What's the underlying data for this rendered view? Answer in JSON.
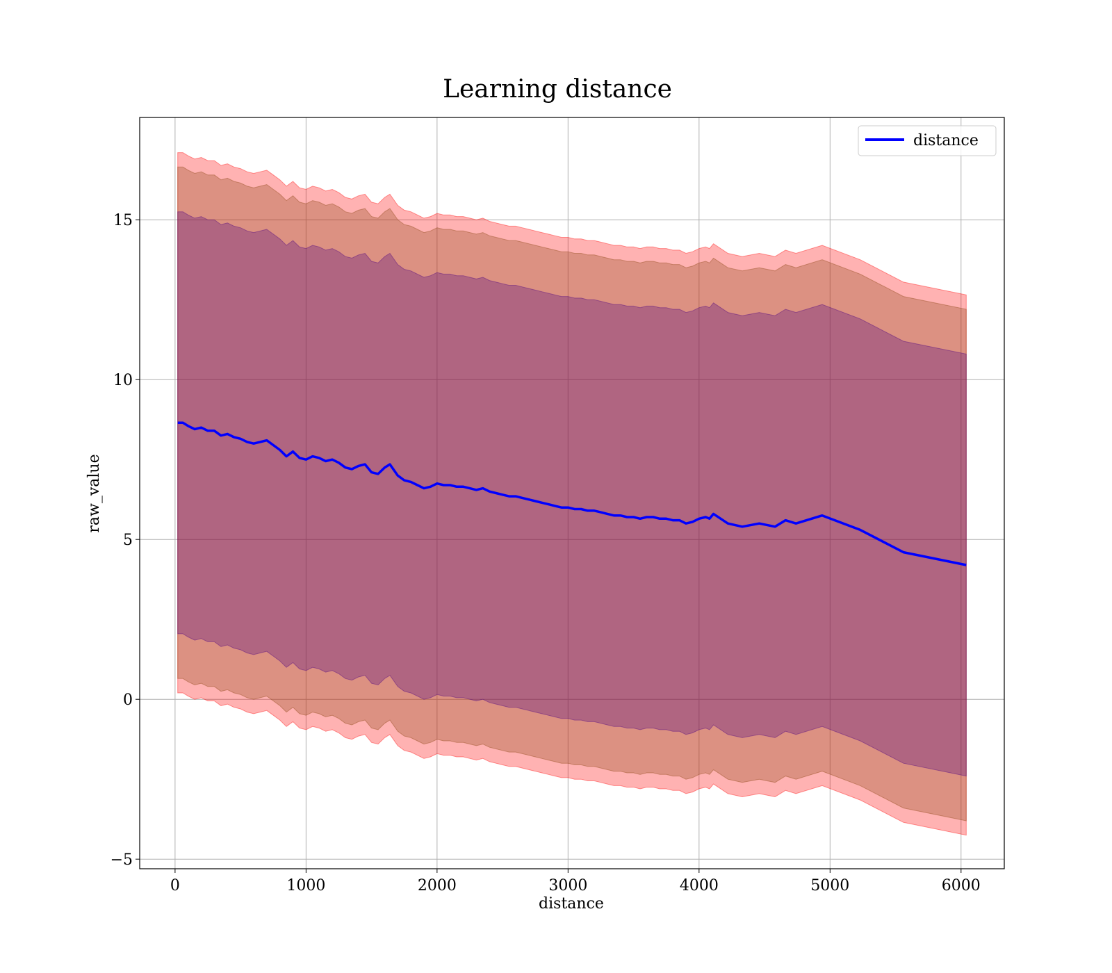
{
  "chart_data": {
    "type": "line",
    "title": "Learning distance",
    "xlabel": "distance",
    "ylabel": "raw_value",
    "xlim": [
      -270,
      6330
    ],
    "ylim": [
      -5.3,
      18.2
    ],
    "xticks": [
      0,
      1000,
      2000,
      3000,
      4000,
      5000,
      6000
    ],
    "xtick_labels": [
      "0",
      "1000",
      "2000",
      "3000",
      "4000",
      "5000",
      "6000"
    ],
    "yticks": [
      -5,
      0,
      5,
      10,
      15
    ],
    "ytick_labels": [
      "−5",
      "0",
      "5",
      "10",
      "15"
    ],
    "grid": true,
    "legend": {
      "position": "top-right",
      "entries": [
        "distance"
      ]
    },
    "colors": {
      "line": "#0000ff",
      "band_outer": "#ff0000",
      "band_mid": "#8b4513",
      "band_inner": "#4b0082"
    },
    "x": [
      20,
      60,
      100,
      150,
      200,
      250,
      300,
      350,
      400,
      450,
      500,
      550,
      600,
      650,
      700,
      750,
      800,
      850,
      900,
      950,
      1000,
      1050,
      1100,
      1150,
      1200,
      1250,
      1300,
      1350,
      1400,
      1450,
      1500,
      1550,
      1600,
      1640,
      1700,
      1750,
      1800,
      1850,
      1900,
      1950,
      2000,
      2050,
      2100,
      2150,
      2200,
      2250,
      2300,
      2350,
      2400,
      2450,
      2500,
      2550,
      2600,
      2650,
      2700,
      2750,
      2800,
      2850,
      2900,
      2950,
      3000,
      3050,
      3100,
      3150,
      3200,
      3250,
      3300,
      3350,
      3400,
      3450,
      3500,
      3550,
      3600,
      3650,
      3700,
      3750,
      3800,
      3850,
      3900,
      3950,
      4000,
      4050,
      4080,
      4110,
      4220,
      4330,
      4460,
      4580,
      4660,
      4740,
      4940,
      5230,
      5560,
      6040
    ],
    "series": [
      {
        "name": "distance",
        "values": [
          8.65,
          8.65,
          8.55,
          8.45,
          8.5,
          8.4,
          8.4,
          8.25,
          8.3,
          8.2,
          8.15,
          8.05,
          8.0,
          8.05,
          8.1,
          7.95,
          7.8,
          7.6,
          7.75,
          7.55,
          7.5,
          7.6,
          7.55,
          7.45,
          7.5,
          7.4,
          7.25,
          7.2,
          7.3,
          7.35,
          7.1,
          7.05,
          7.25,
          7.35,
          7.0,
          6.85,
          6.8,
          6.7,
          6.6,
          6.65,
          6.75,
          6.7,
          6.7,
          6.65,
          6.65,
          6.6,
          6.55,
          6.6,
          6.5,
          6.45,
          6.4,
          6.35,
          6.35,
          6.3,
          6.25,
          6.2,
          6.15,
          6.1,
          6.05,
          6.0,
          6.0,
          5.95,
          5.95,
          5.9,
          5.9,
          5.85,
          5.8,
          5.75,
          5.75,
          5.7,
          5.7,
          5.65,
          5.7,
          5.7,
          5.65,
          5.65,
          5.6,
          5.6,
          5.5,
          5.55,
          5.65,
          5.7,
          5.65,
          5.8,
          5.5,
          5.4,
          5.5,
          5.4,
          5.6,
          5.5,
          5.75,
          5.3,
          4.6,
          4.2
        ]
      }
    ],
    "bands": [
      {
        "offset": 8.45
      },
      {
        "offset": 8.0
      },
      {
        "offset": 6.6
      }
    ]
  }
}
